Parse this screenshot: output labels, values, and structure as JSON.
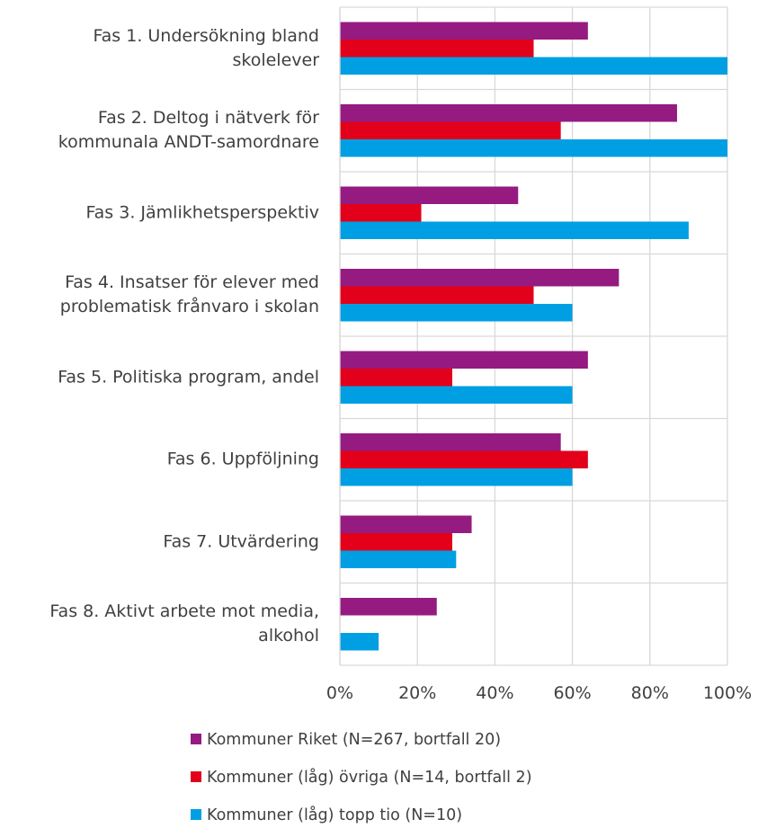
{
  "chart_data": {
    "type": "hbar",
    "categories": [
      "Fas 1. Undersökning bland\nskolelever",
      "Fas 2. Deltog i nätverk för\nkommunala ANDT-samordnare",
      "Fas 3. Jämlikhetsperspektiv",
      "Fas 4. Insatser för elever med\nproblematisk frånvaro i skolan",
      "Fas 5. Politiska program, andel",
      "Fas 6. Uppföljning",
      "Fas 7. Utvärdering",
      "Fas 8. Aktivt arbete mot media,\nalkohol"
    ],
    "series": [
      {
        "name": "Kommuner Riket (N=267, bortfall 20)",
        "color": "#951b81",
        "values": [
          64,
          87,
          46,
          72,
          64,
          57,
          34,
          25
        ]
      },
      {
        "name": "Kommuner (låg) övriga (N=14, bortfall 2)",
        "color": "#e2001a",
        "values": [
          50,
          57,
          21,
          50,
          29,
          64,
          29,
          0
        ]
      },
      {
        "name": "Kommuner (låg) topp tio (N=10)",
        "color": "#009fe3",
        "values": [
          100,
          100,
          90,
          60,
          60,
          60,
          30,
          10
        ]
      }
    ],
    "xlim": [
      0,
      100
    ],
    "xticks": [
      {
        "value": 0,
        "label": "0%"
      },
      {
        "value": 20,
        "label": "20%"
      },
      {
        "value": 40,
        "label": "40%"
      },
      {
        "value": 60,
        "label": "60%"
      },
      {
        "value": 80,
        "label": "80%"
      },
      {
        "value": 100,
        "label": "100%"
      }
    ],
    "grid": true,
    "legend": "bottom"
  }
}
